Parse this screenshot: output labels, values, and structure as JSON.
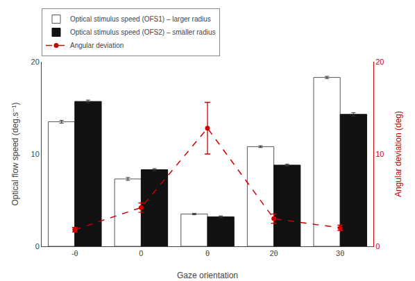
{
  "chart_data": {
    "type": "bar",
    "categories": [
      "-θ",
      "0",
      "θ",
      "2θ",
      "3θ"
    ],
    "xlabel": "Gaze orientation",
    "ylabel": "Optical flow speed (deg.s⁻¹)",
    "y2label": "Angular deviation (deg)",
    "ylim": [
      0,
      20
    ],
    "yticks": [
      0,
      10,
      20
    ],
    "y2lim": [
      0,
      20
    ],
    "y2ticks": [
      0,
      10,
      20
    ],
    "grid": false,
    "legend": "top",
    "series": [
      {
        "name": "Optical stimulus speed (OFS1) – larger radius",
        "type": "bar",
        "color": "white",
        "edge_color": "#555555",
        "values": [
          13.5,
          7.3,
          3.5,
          10.8,
          18.3
        ],
        "errors": [
          0.15,
          0.15,
          0.08,
          0.1,
          0.12
        ]
      },
      {
        "name": "Optical stimulus speed (OFS2) – smaller radius",
        "type": "bar",
        "color": "#111111",
        "edge_color": "#111111",
        "values": [
          15.7,
          8.3,
          3.2,
          8.8,
          14.3
        ],
        "errors": [
          0.15,
          0.12,
          0.1,
          0.1,
          0.18
        ]
      },
      {
        "name": "Angular deviation",
        "type": "line",
        "axis": "y2",
        "color": "#cc0000",
        "line_style": "dashed",
        "marker": "circle",
        "values": [
          1.8,
          4.2,
          12.8,
          3.0,
          2.0
        ],
        "error_plus": [
          0.25,
          0.5,
          2.8,
          0.5,
          0.3
        ],
        "error_minus": [
          0.25,
          0.5,
          2.8,
          0.5,
          0.3
        ]
      }
    ]
  }
}
